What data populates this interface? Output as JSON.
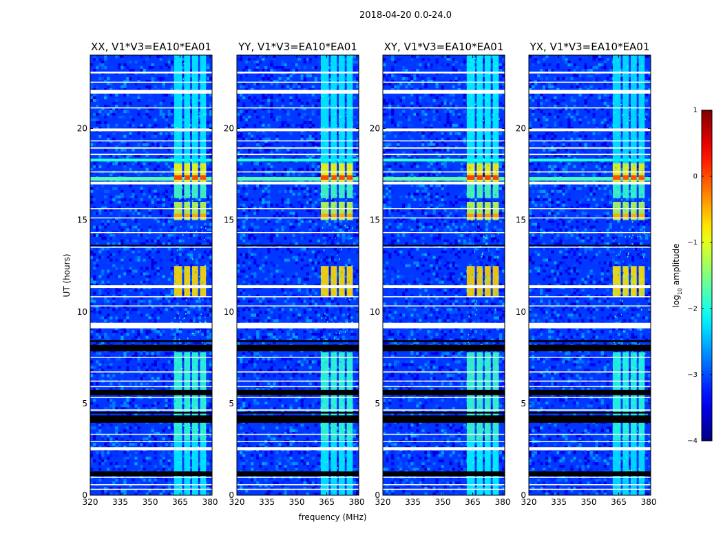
{
  "chart_data": {
    "type": "heatmap",
    "suptitle": "2018-04-20 0.0-24.0",
    "xlabel": "frequency (MHz)",
    "ylabel": "UT (hours)",
    "xlim": [
      320,
      381
    ],
    "ylim": [
      0,
      24
    ],
    "xticks": [
      320,
      335,
      350,
      365,
      380
    ],
    "xtick_labels": [
      "320",
      "335",
      "350",
      "365",
      "380"
    ],
    "yticks": [
      0,
      5,
      10,
      15,
      20
    ],
    "ytick_labels": [
      "0",
      "5",
      "10",
      "15",
      "20"
    ],
    "panels": [
      {
        "title": "XX, V1*V3=EA10*EA01",
        "pol": "XX",
        "level_offset": 0.0
      },
      {
        "title": "YY, V1*V3=EA10*EA01",
        "pol": "YY",
        "level_offset": 0.0
      },
      {
        "title": "XY, V1*V3=EA10*EA01",
        "pol": "XY",
        "level_offset": 0.05
      },
      {
        "title": "YX, V1*V3=EA10*EA01",
        "pol": "YX",
        "level_offset": -0.05
      }
    ],
    "colorbar": {
      "label": "log10 amplitude",
      "label_base": "log",
      "label_sub": "10",
      "label_rest": " amplitude",
      "range": [
        -4,
        1
      ],
      "ticks": [
        1,
        0,
        -1,
        -2,
        -3,
        -4
      ],
      "tick_labels": [
        "1",
        "0",
        "−1",
        "−2",
        "−3",
        "−4"
      ],
      "colormap": "jet"
    },
    "background_level": -3.1,
    "rfi_channels_mhz": [
      [
        362,
        366
      ],
      [
        367,
        370
      ],
      [
        371,
        374
      ],
      [
        375,
        378
      ]
    ],
    "rfi_levels": [
      {
        "ut": [
          0.0,
          3.0
        ],
        "level": -2.2
      },
      {
        "ut": [
          3.0,
          7.8
        ],
        "level": -1.9
      },
      {
        "ut": [
          10.8,
          12.5
        ],
        "level": -0.7
      },
      {
        "ut": [
          15.0,
          16.0
        ],
        "level": -1.2
      },
      {
        "ut": [
          15.1,
          15.35
        ],
        "level": -0.4
      },
      {
        "ut": [
          16.2,
          17.0
        ],
        "level": -1.8
      },
      {
        "ut": [
          17.1,
          18.1
        ],
        "level": -0.9
      },
      {
        "ut": [
          17.2,
          17.45
        ],
        "level": 0.1
      },
      {
        "ut": [
          18.1,
          24.0
        ],
        "level": -2.2
      }
    ],
    "broadband_events": [
      {
        "ut": [
          17.15,
          17.35
        ],
        "level": -1.7
      },
      {
        "ut": [
          18.2,
          18.35
        ],
        "level": -1.9
      }
    ],
    "flagged_white_ut": [
      [
        0.3,
        0.35
      ],
      [
        0.55,
        0.6
      ],
      [
        0.95,
        1.0
      ],
      [
        2.45,
        2.62
      ],
      [
        2.9,
        2.95
      ],
      [
        3.3,
        3.35
      ],
      [
        4.6,
        4.68
      ],
      [
        5.3,
        5.35
      ],
      [
        5.9,
        5.95
      ],
      [
        6.2,
        6.25
      ],
      [
        6.7,
        6.75
      ],
      [
        7.5,
        7.55
      ],
      [
        9.1,
        9.4
      ],
      [
        10.3,
        10.35
      ],
      [
        10.8,
        10.85
      ],
      [
        11.3,
        11.45
      ],
      [
        13.5,
        13.55
      ],
      [
        14.3,
        14.35
      ],
      [
        15.1,
        15.15
      ],
      [
        15.6,
        15.66
      ],
      [
        16.95,
        17.1
      ],
      [
        17.6,
        17.66
      ],
      [
        18.55,
        18.62
      ],
      [
        18.9,
        18.97
      ],
      [
        19.3,
        19.35
      ],
      [
        19.85,
        20.0
      ],
      [
        21.1,
        21.15
      ],
      [
        21.9,
        22.1
      ],
      [
        22.5,
        22.55
      ],
      [
        23.0,
        23.1
      ]
    ],
    "flagged_black_ut": [
      [
        1.05,
        1.3
      ],
      [
        3.95,
        4.35
      ],
      [
        4.45,
        4.55
      ],
      [
        5.45,
        5.75
      ],
      [
        7.85,
        8.2
      ],
      [
        8.35,
        8.45
      ],
      [
        13.6,
        13.65
      ]
    ]
  }
}
